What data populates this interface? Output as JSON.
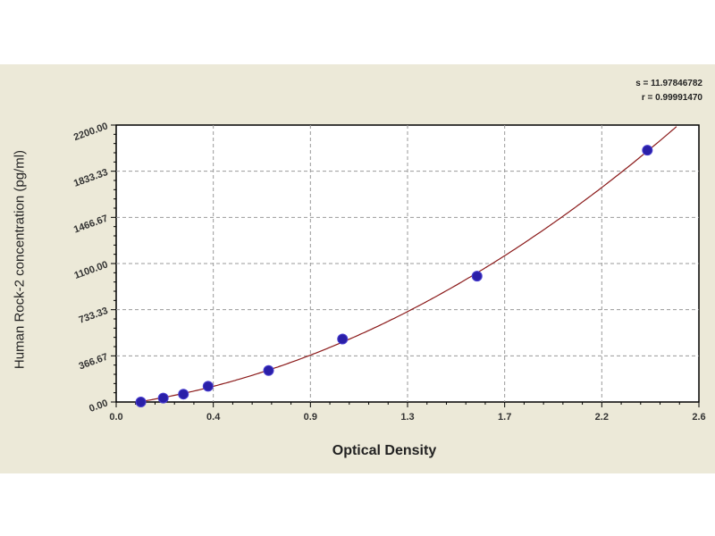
{
  "chart_data": {
    "type": "scatter",
    "title": "",
    "xlabel": "Optical Density",
    "ylabel": "Human Rock-2 concentration (pg/ml)",
    "xlim": [
      0,
      2.6
    ],
    "ylim": [
      0,
      2200
    ],
    "xticks": [
      "0.0",
      "0.4",
      "0.9",
      "1.3",
      "1.7",
      "2.2",
      "2.6"
    ],
    "yticks": [
      "0.00",
      "366.67",
      "733.33",
      "1100.00",
      "1466.67",
      "1833.33",
      "2200.00"
    ],
    "grid": true,
    "fit_stats": {
      "s": "s = 11.97846782",
      "r": "r = 0.99991470"
    },
    "points": [
      {
        "x": 0.11,
        "y": 0
      },
      {
        "x": 0.21,
        "y": 31.25
      },
      {
        "x": 0.3,
        "y": 62.5
      },
      {
        "x": 0.41,
        "y": 125
      },
      {
        "x": 0.68,
        "y": 250
      },
      {
        "x": 1.01,
        "y": 500
      },
      {
        "x": 1.61,
        "y": 1000
      },
      {
        "x": 2.37,
        "y": 2000
      }
    ],
    "colors": {
      "points": "#2a1fa8",
      "curve": "#8b1a1a",
      "background": "#ece9d8"
    }
  }
}
